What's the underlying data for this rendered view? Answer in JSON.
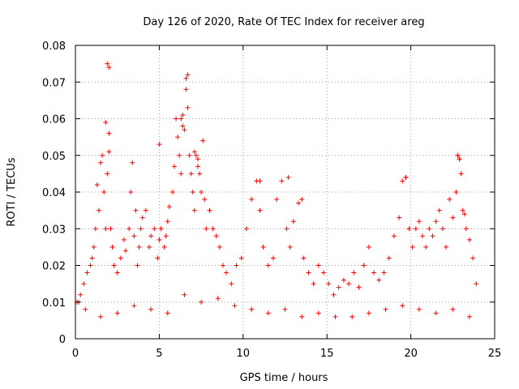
{
  "chart_data": {
    "type": "scatter",
    "title": "Day 126 of 2020, Rate Of TEC Index for receiver areg",
    "xlabel": "GPS time / hours",
    "ylabel": "ROTI / TECUs",
    "xlim": [
      0,
      25
    ],
    "ylim": [
      0,
      0.08
    ],
    "x_ticks": [
      0,
      5,
      10,
      15,
      20,
      25
    ],
    "y_ticks": [
      0,
      0.01,
      0.02,
      0.03,
      0.04,
      0.05,
      0.06,
      0.07,
      0.08
    ],
    "x_tick_labels": [
      "0",
      "5",
      "10",
      "15",
      "20",
      "25"
    ],
    "y_tick_labels": [
      "0",
      "0.01",
      "0.02",
      "0.03",
      "0.04",
      "0.05",
      "0.06",
      "0.07",
      "0.08"
    ],
    "grid": true,
    "marker": "+",
    "series": [
      {
        "name": "ROTI",
        "color": "#ff0000",
        "x": [
          0.1,
          0.3,
          0.5,
          0.7,
          0.9,
          1.0,
          1.1,
          1.2,
          1.3,
          1.4,
          1.5,
          1.6,
          1.7,
          1.8,
          1.9,
          2.0,
          2.0,
          2.1,
          2.2,
          2.3,
          2.5,
          2.7,
          2.9,
          3.0,
          3.2,
          3.3,
          3.4,
          3.5,
          3.6,
          3.7,
          3.8,
          3.9,
          4.0,
          4.2,
          4.4,
          4.5,
          4.7,
          4.9,
          5.0,
          5.1,
          5.3,
          5.4,
          5.5,
          5.6,
          5.8,
          5.9,
          6.0,
          6.1,
          6.2,
          6.3,
          6.4,
          6.5,
          6.6,
          6.7,
          6.8,
          6.9,
          7.0,
          7.1,
          7.2,
          7.3,
          7.4,
          7.5,
          7.6,
          7.7,
          7.8,
          8.0,
          8.2,
          8.4,
          8.6,
          8.8,
          9.0,
          9.3,
          9.6,
          9.9,
          10.2,
          10.5,
          10.8,
          11.0,
          11.2,
          11.5,
          11.8,
          12.0,
          12.3,
          12.6,
          12.8,
          13.0,
          13.3,
          13.6,
          13.9,
          14.2,
          14.5,
          14.8,
          15.1,
          15.4,
          15.7,
          16.0,
          16.3,
          16.6,
          16.9,
          17.2,
          17.5,
          17.8,
          18.1,
          18.4,
          18.7,
          19.0,
          19.3,
          19.5,
          19.7,
          19.9,
          20.1,
          20.3,
          20.5,
          20.7,
          20.9,
          21.1,
          21.3,
          21.5,
          21.7,
          21.9,
          22.1,
          22.3,
          22.5,
          22.7,
          22.8,
          22.9,
          23.0,
          23.1,
          23.2,
          23.3,
          23.5,
          23.7,
          23.9,
          0.2,
          0.6,
          1.5,
          2.5,
          3.5,
          4.5,
          5.5,
          6.5,
          7.5,
          8.5,
          9.5,
          10.5,
          11.5,
          12.5,
          13.5,
          14.5,
          15.5,
          16.5,
          17.5,
          18.5,
          19.5,
          20.5,
          21.5,
          22.5,
          23.5,
          1.9,
          2.0,
          6.7,
          6.6,
          6.4,
          6.3,
          1.8,
          5.0,
          7.1,
          7.3,
          22.8,
          22.9,
          19.7,
          12.7,
          11.0,
          13.5
        ],
        "y": [
          0.01,
          0.012,
          0.015,
          0.018,
          0.02,
          0.022,
          0.025,
          0.03,
          0.042,
          0.035,
          0.048,
          0.05,
          0.04,
          0.03,
          0.045,
          0.056,
          0.051,
          0.03,
          0.025,
          0.02,
          0.018,
          0.022,
          0.027,
          0.024,
          0.03,
          0.04,
          0.048,
          0.028,
          0.035,
          0.02,
          0.025,
          0.03,
          0.033,
          0.035,
          0.025,
          0.028,
          0.03,
          0.022,
          0.027,
          0.03,
          0.025,
          0.028,
          0.032,
          0.036,
          0.04,
          0.047,
          0.06,
          0.055,
          0.05,
          0.045,
          0.058,
          0.057,
          0.068,
          0.063,
          0.05,
          0.045,
          0.04,
          0.035,
          0.05,
          0.047,
          0.045,
          0.04,
          0.054,
          0.038,
          0.03,
          0.035,
          0.03,
          0.028,
          0.025,
          0.02,
          0.018,
          0.015,
          0.02,
          0.022,
          0.03,
          0.038,
          0.043,
          0.035,
          0.025,
          0.02,
          0.022,
          0.038,
          0.043,
          0.03,
          0.025,
          0.032,
          0.037,
          0.022,
          0.018,
          0.015,
          0.02,
          0.018,
          0.015,
          0.012,
          0.014,
          0.016,
          0.015,
          0.018,
          0.014,
          0.02,
          0.025,
          0.018,
          0.016,
          0.018,
          0.022,
          0.028,
          0.033,
          0.043,
          0.044,
          0.03,
          0.025,
          0.03,
          0.032,
          0.028,
          0.025,
          0.03,
          0.028,
          0.032,
          0.035,
          0.03,
          0.025,
          0.038,
          0.033,
          0.04,
          0.05,
          0.049,
          0.045,
          0.035,
          0.034,
          0.03,
          0.027,
          0.022,
          0.015,
          0.01,
          0.008,
          0.006,
          0.007,
          0.009,
          0.008,
          0.007,
          0.012,
          0.01,
          0.011,
          0.009,
          0.008,
          0.007,
          0.008,
          0.006,
          0.007,
          0.006,
          0.006,
          0.007,
          0.008,
          0.009,
          0.008,
          0.007,
          0.008,
          0.006,
          0.075,
          0.074,
          0.072,
          0.071,
          0.061,
          0.06,
          0.059,
          0.053,
          0.051,
          0.049,
          0.05,
          0.049,
          0.044,
          0.044,
          0.043,
          0.038
        ]
      }
    ]
  }
}
